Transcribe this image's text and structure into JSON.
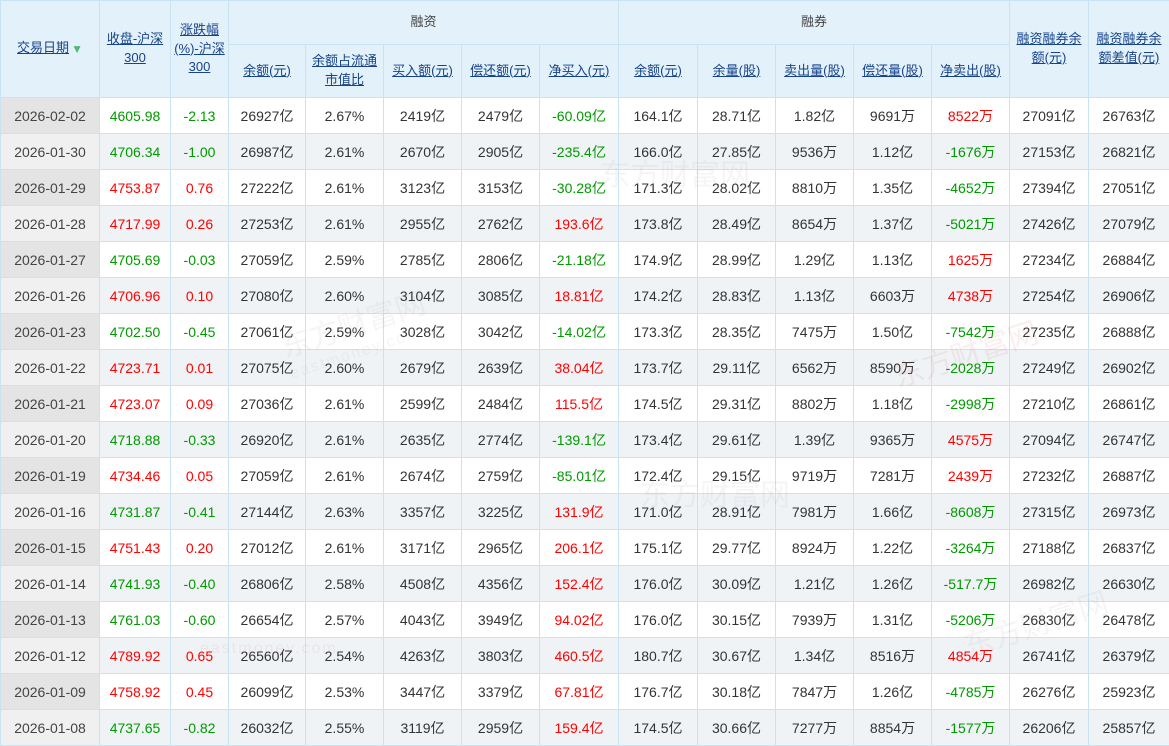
{
  "table": {
    "columns": {
      "date": "交易日期",
      "close": "收盘-沪深300",
      "change_pct": "涨跌幅(%)-沪深300",
      "rz_group": "融资",
      "rq_group": "融券",
      "rz_balance": "余额(元)",
      "rz_balance_ratio": "余额占流通市值比",
      "rz_buy": "买入额(元)",
      "rz_repay": "偿还额(元)",
      "rz_net_buy": "净买入(元)",
      "rq_balance": "余额(元)",
      "rq_volume": "余量(股)",
      "rq_sell": "卖出量(股)",
      "rq_repay": "偿还量(股)",
      "rq_net_sell": "净卖出(股)",
      "total_balance": "融资融券余额(元)",
      "balance_diff": "融资融券余额差值(元)"
    },
    "sort_arrow": "▼",
    "rows": [
      [
        "2026-02-02",
        {
          "v": "4605.98",
          "c": "down"
        },
        {
          "v": "-2.13",
          "c": "down"
        },
        "26927亿",
        "2.67%",
        "2419亿",
        "2479亿",
        {
          "v": "-60.09亿",
          "c": "down"
        },
        "164.1亿",
        "28.71亿",
        "1.82亿",
        "9691万",
        {
          "v": "8522万",
          "c": "up"
        },
        "27091亿",
        "26763亿"
      ],
      [
        "2026-01-30",
        {
          "v": "4706.34",
          "c": "down"
        },
        {
          "v": "-1.00",
          "c": "down"
        },
        "26987亿",
        "2.61%",
        "2670亿",
        "2905亿",
        {
          "v": "-235.4亿",
          "c": "down"
        },
        "166.0亿",
        "27.85亿",
        "9536万",
        "1.12亿",
        {
          "v": "-1676万",
          "c": "down"
        },
        "27153亿",
        "26821亿"
      ],
      [
        "2026-01-29",
        {
          "v": "4753.87",
          "c": "up"
        },
        {
          "v": "0.76",
          "c": "up"
        },
        "27222亿",
        "2.61%",
        "3123亿",
        "3153亿",
        {
          "v": "-30.28亿",
          "c": "down"
        },
        "171.3亿",
        "28.02亿",
        "8810万",
        "1.35亿",
        {
          "v": "-4652万",
          "c": "down"
        },
        "27394亿",
        "27051亿"
      ],
      [
        "2026-01-28",
        {
          "v": "4717.99",
          "c": "up"
        },
        {
          "v": "0.26",
          "c": "up"
        },
        "27253亿",
        "2.61%",
        "2955亿",
        "2762亿",
        {
          "v": "193.6亿",
          "c": "up"
        },
        "173.8亿",
        "28.49亿",
        "8654万",
        "1.37亿",
        {
          "v": "-5021万",
          "c": "down"
        },
        "27426亿",
        "27079亿"
      ],
      [
        "2026-01-27",
        {
          "v": "4705.69",
          "c": "down"
        },
        {
          "v": "-0.03",
          "c": "down"
        },
        "27059亿",
        "2.59%",
        "2785亿",
        "2806亿",
        {
          "v": "-21.18亿",
          "c": "down"
        },
        "174.9亿",
        "28.99亿",
        "1.29亿",
        "1.13亿",
        {
          "v": "1625万",
          "c": "up"
        },
        "27234亿",
        "26884亿"
      ],
      [
        "2026-01-26",
        {
          "v": "4706.96",
          "c": "up"
        },
        {
          "v": "0.10",
          "c": "up"
        },
        "27080亿",
        "2.60%",
        "3104亿",
        "3085亿",
        {
          "v": "18.81亿",
          "c": "up"
        },
        "174.2亿",
        "28.83亿",
        "1.13亿",
        "6603万",
        {
          "v": "4738万",
          "c": "up"
        },
        "27254亿",
        "26906亿"
      ],
      [
        "2026-01-23",
        {
          "v": "4702.50",
          "c": "down"
        },
        {
          "v": "-0.45",
          "c": "down"
        },
        "27061亿",
        "2.59%",
        "3028亿",
        "3042亿",
        {
          "v": "-14.02亿",
          "c": "down"
        },
        "173.3亿",
        "28.35亿",
        "7475万",
        "1.50亿",
        {
          "v": "-7542万",
          "c": "down"
        },
        "27235亿",
        "26888亿"
      ],
      [
        "2026-01-22",
        {
          "v": "4723.71",
          "c": "up"
        },
        {
          "v": "0.01",
          "c": "up"
        },
        "27075亿",
        "2.60%",
        "2679亿",
        "2639亿",
        {
          "v": "38.04亿",
          "c": "up"
        },
        "173.7亿",
        "29.11亿",
        "6562万",
        "8590万",
        {
          "v": "-2028万",
          "c": "down"
        },
        "27249亿",
        "26902亿"
      ],
      [
        "2026-01-21",
        {
          "v": "4723.07",
          "c": "up"
        },
        {
          "v": "0.09",
          "c": "up"
        },
        "27036亿",
        "2.61%",
        "2599亿",
        "2484亿",
        {
          "v": "115.5亿",
          "c": "up"
        },
        "174.5亿",
        "29.31亿",
        "8802万",
        "1.18亿",
        {
          "v": "-2998万",
          "c": "down"
        },
        "27210亿",
        "26861亿"
      ],
      [
        "2026-01-20",
        {
          "v": "4718.88",
          "c": "down"
        },
        {
          "v": "-0.33",
          "c": "down"
        },
        "26920亿",
        "2.61%",
        "2635亿",
        "2774亿",
        {
          "v": "-139.1亿",
          "c": "down"
        },
        "173.4亿",
        "29.61亿",
        "1.39亿",
        "9365万",
        {
          "v": "4575万",
          "c": "up"
        },
        "27094亿",
        "26747亿"
      ],
      [
        "2026-01-19",
        {
          "v": "4734.46",
          "c": "up"
        },
        {
          "v": "0.05",
          "c": "up"
        },
        "27059亿",
        "2.61%",
        "2674亿",
        "2759亿",
        {
          "v": "-85.01亿",
          "c": "down"
        },
        "172.4亿",
        "29.15亿",
        "9719万",
        "7281万",
        {
          "v": "2439万",
          "c": "up"
        },
        "27232亿",
        "26887亿"
      ],
      [
        "2026-01-16",
        {
          "v": "4731.87",
          "c": "down"
        },
        {
          "v": "-0.41",
          "c": "down"
        },
        "27144亿",
        "2.63%",
        "3357亿",
        "3225亿",
        {
          "v": "131.9亿",
          "c": "up"
        },
        "171.0亿",
        "28.91亿",
        "7981万",
        "1.66亿",
        {
          "v": "-8608万",
          "c": "down"
        },
        "27315亿",
        "26973亿"
      ],
      [
        "2026-01-15",
        {
          "v": "4751.43",
          "c": "up"
        },
        {
          "v": "0.20",
          "c": "up"
        },
        "27012亿",
        "2.61%",
        "3171亿",
        "2965亿",
        {
          "v": "206.1亿",
          "c": "up"
        },
        "175.1亿",
        "29.77亿",
        "8924万",
        "1.22亿",
        {
          "v": "-3264万",
          "c": "down"
        },
        "27188亿",
        "26837亿"
      ],
      [
        "2026-01-14",
        {
          "v": "4741.93",
          "c": "down"
        },
        {
          "v": "-0.40",
          "c": "down"
        },
        "26806亿",
        "2.58%",
        "4508亿",
        "4356亿",
        {
          "v": "152.4亿",
          "c": "up"
        },
        "176.0亿",
        "30.09亿",
        "1.21亿",
        "1.26亿",
        {
          "v": "-517.7万",
          "c": "down"
        },
        "26982亿",
        "26630亿"
      ],
      [
        "2026-01-13",
        {
          "v": "4761.03",
          "c": "down"
        },
        {
          "v": "-0.60",
          "c": "down"
        },
        "26654亿",
        "2.57%",
        "4043亿",
        "3949亿",
        {
          "v": "94.02亿",
          "c": "up"
        },
        "176.0亿",
        "30.15亿",
        "7939万",
        "1.31亿",
        {
          "v": "-5206万",
          "c": "down"
        },
        "26830亿",
        "26478亿"
      ],
      [
        "2026-01-12",
        {
          "v": "4789.92",
          "c": "up"
        },
        {
          "v": "0.65",
          "c": "up"
        },
        "26560亿",
        "2.54%",
        "4263亿",
        "3803亿",
        {
          "v": "460.5亿",
          "c": "up"
        },
        "180.7亿",
        "30.67亿",
        "1.34亿",
        "8516万",
        {
          "v": "4854万",
          "c": "up"
        },
        "26741亿",
        "26379亿"
      ],
      [
        "2026-01-09",
        {
          "v": "4758.92",
          "c": "up"
        },
        {
          "v": "0.45",
          "c": "up"
        },
        "26099亿",
        "2.53%",
        "3447亿",
        "3379亿",
        {
          "v": "67.81亿",
          "c": "up"
        },
        "176.7亿",
        "30.18亿",
        "7847万",
        "1.26亿",
        {
          "v": "-4785万",
          "c": "down"
        },
        "26276亿",
        "25923亿"
      ],
      [
        "2026-01-08",
        {
          "v": "4737.65",
          "c": "down"
        },
        {
          "v": "-0.82",
          "c": "down"
        },
        "26032亿",
        "2.55%",
        "3119亿",
        "2959亿",
        {
          "v": "159.4亿",
          "c": "up"
        },
        "174.5亿",
        "30.66亿",
        "7277万",
        "8854万",
        {
          "v": "-1577万",
          "c": "down"
        },
        "26206亿",
        "25857亿"
      ]
    ]
  },
  "colors": {
    "up": "#ff0000",
    "down": "#009900",
    "header_bg": "#e3f1fa",
    "header_text": "#17438a",
    "border": "#c9e3f3",
    "sort_arrow": "#55b877"
  },
  "watermark": {
    "site": "东方财富网",
    "domain": "eastmoney.com"
  }
}
